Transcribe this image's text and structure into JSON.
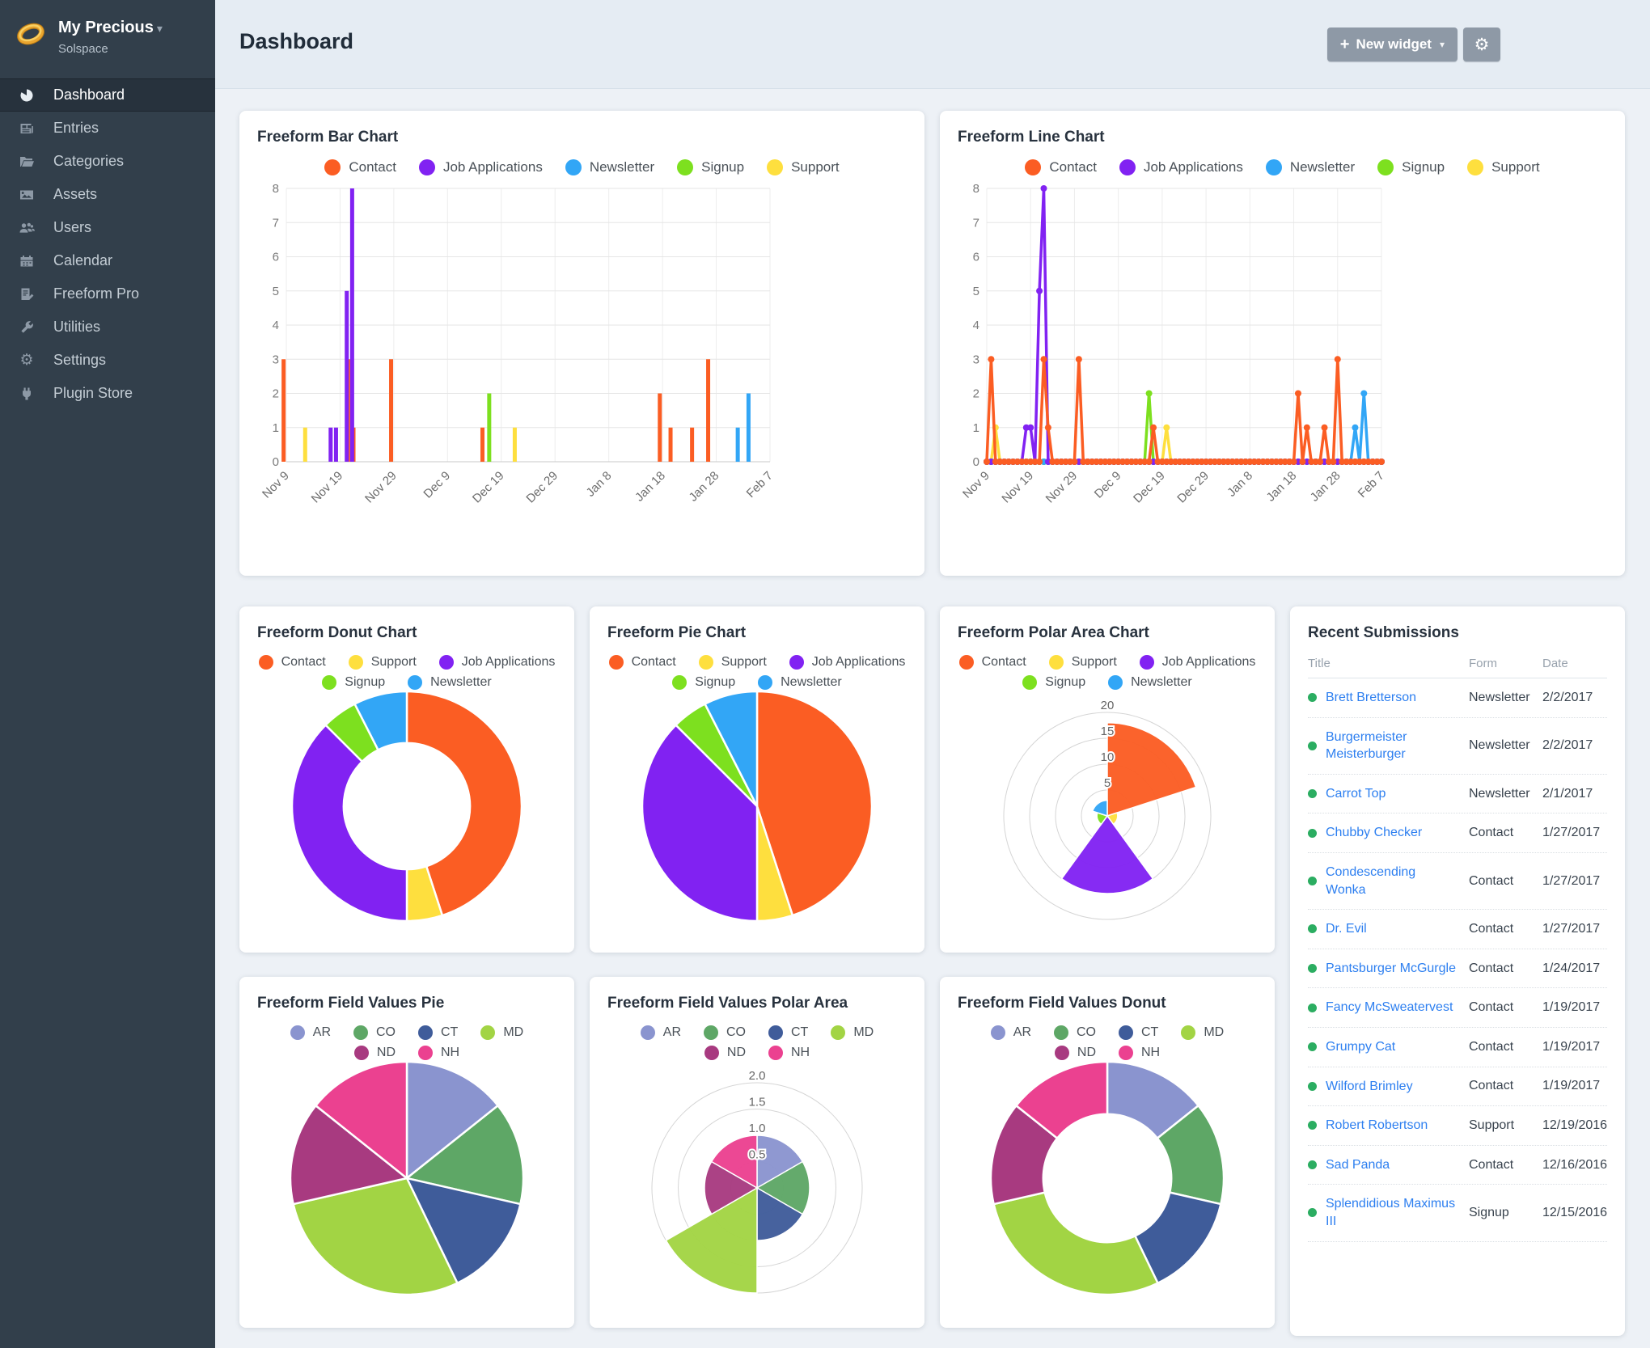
{
  "app": {
    "brand": {
      "name": "My Precious",
      "chevron": "▾",
      "site": "Solspace"
    },
    "header": {
      "title": "Dashboard",
      "new_widget": {
        "plus": "+",
        "label": "New widget",
        "caret": "▾"
      },
      "gear_glyph": "⚙"
    }
  },
  "sidebar": {
    "items": [
      {
        "label": "Dashboard",
        "icon": "gauge-icon",
        "active": true
      },
      {
        "label": "Entries",
        "icon": "newspaper-icon",
        "active": false
      },
      {
        "label": "Categories",
        "icon": "folder-icon",
        "active": false
      },
      {
        "label": "Assets",
        "icon": "image-icon",
        "active": false
      },
      {
        "label": "Users",
        "icon": "users-icon",
        "active": false
      },
      {
        "label": "Calendar",
        "icon": "calendar-icon",
        "active": false
      },
      {
        "label": "Freeform Pro",
        "icon": "document-pencil-icon",
        "active": false
      },
      {
        "label": "Utilities",
        "icon": "wrench-icon",
        "active": false
      },
      {
        "label": "Settings",
        "icon": "gear-icon",
        "active": false
      },
      {
        "label": "Plugin Store",
        "icon": "plug-icon",
        "active": false
      }
    ]
  },
  "colors": {
    "sidebar_bg": "#323f4b",
    "header_bg": "#e5ecf3",
    "page_bg": "#edf1f6",
    "button_bg": "#8e99a6",
    "link_blue": "#2d7ff0",
    "status_green": "#2bad61",
    "series": {
      "Contact": "#fb5d23",
      "Job Applications": "#8122f2",
      "Newsletter": "#32a6f6",
      "Signup": "#7de01f",
      "Support": "#fedf3e"
    },
    "fields": {
      "AR": "#8a94cf",
      "CO": "#5ea766",
      "CT": "#3f5c9a",
      "MD": "#a2d444",
      "ND": "#a83a80",
      "NH": "#eb4190"
    }
  },
  "chart_data": [
    {
      "type": "bar",
      "title": "Freeform Bar Chart",
      "legend": [
        "Contact",
        "Job Applications",
        "Newsletter",
        "Signup",
        "Support"
      ],
      "legend_rows": [
        5
      ],
      "x_axis": {
        "max_day": 90,
        "tick_days": [
          0,
          10,
          20,
          30,
          40,
          50,
          60,
          70,
          80,
          90
        ],
        "tick_labels": [
          "Nov 9",
          "Nov 19",
          "Nov 29",
          "Dec 9",
          "Dec 19",
          "Dec 29",
          "Jan 8",
          "Jan 18",
          "Jan 28",
          "Feb 7"
        ]
      },
      "y_axis": {
        "min": 0,
        "max": 8,
        "step": 1
      },
      "series": [
        {
          "name": "Contact",
          "color": "#fb5d23",
          "points": [
            [
              1,
              3
            ],
            [
              13,
              3
            ],
            [
              14,
              1
            ],
            [
              21,
              3
            ],
            [
              38,
              1
            ],
            [
              71,
              2
            ],
            [
              73,
              1
            ],
            [
              77,
              1
            ],
            [
              80,
              3
            ]
          ]
        },
        {
          "name": "Job Applications",
          "color": "#8122f2",
          "points": [
            [
              9,
              1
            ],
            [
              10,
              1
            ],
            [
              12,
              5
            ],
            [
              13,
              8
            ]
          ]
        },
        {
          "name": "Newsletter",
          "color": "#32a6f6",
          "points": [
            [
              84,
              1
            ],
            [
              86,
              2
            ]
          ]
        },
        {
          "name": "Signup",
          "color": "#7de01f",
          "points": [
            [
              37,
              2
            ]
          ]
        },
        {
          "name": "Support",
          "color": "#fedf3e",
          "points": [
            [
              2,
              1
            ],
            [
              41,
              1
            ]
          ]
        }
      ]
    },
    {
      "type": "line",
      "title": "Freeform Line Chart",
      "legend": [
        "Contact",
        "Job Applications",
        "Newsletter",
        "Signup",
        "Support"
      ],
      "legend_rows": [
        5
      ],
      "x_axis": {
        "max_day": 90,
        "tick_days": [
          0,
          10,
          20,
          30,
          40,
          50,
          60,
          70,
          80,
          90
        ],
        "tick_labels": [
          "Nov 9",
          "Nov 19",
          "Nov 29",
          "Dec 9",
          "Dec 19",
          "Dec 29",
          "Jan 8",
          "Jan 18",
          "Jan 28",
          "Feb 7"
        ]
      },
      "y_axis": {
        "min": 0,
        "max": 8,
        "step": 1
      },
      "series": [
        {
          "name": "Contact",
          "color": "#fb5d23",
          "points": [
            [
              1,
              3
            ],
            [
              13,
              3
            ],
            [
              14,
              1
            ],
            [
              21,
              3
            ],
            [
              38,
              1
            ],
            [
              71,
              2
            ],
            [
              73,
              1
            ],
            [
              77,
              1
            ],
            [
              80,
              3
            ]
          ]
        },
        {
          "name": "Job Applications",
          "color": "#8122f2",
          "points": [
            [
              9,
              1
            ],
            [
              10,
              1
            ],
            [
              12,
              5
            ],
            [
              13,
              8
            ]
          ]
        },
        {
          "name": "Newsletter",
          "color": "#32a6f6",
          "points": [
            [
              84,
              1
            ],
            [
              86,
              2
            ]
          ]
        },
        {
          "name": "Signup",
          "color": "#7de01f",
          "points": [
            [
              37,
              2
            ]
          ]
        },
        {
          "name": "Support",
          "color": "#fedf3e",
          "points": [
            [
              2,
              1
            ],
            [
              41,
              1
            ]
          ]
        }
      ]
    },
    {
      "type": "donut",
      "title": "Freeform Donut Chart",
      "legend": [
        "Contact",
        "Support",
        "Job Applications",
        "Signup",
        "Newsletter"
      ],
      "legend_rows": [
        3,
        2
      ],
      "slices": [
        {
          "label": "Contact",
          "value": 18,
          "color": "#fb5d23"
        },
        {
          "label": "Support",
          "value": 2,
          "color": "#fedf3e"
        },
        {
          "label": "Job Applications",
          "value": 15,
          "color": "#8122f2"
        },
        {
          "label": "Signup",
          "value": 2,
          "color": "#7de01f"
        },
        {
          "label": "Newsletter",
          "value": 3,
          "color": "#32a6f6"
        }
      ]
    },
    {
      "type": "pie",
      "title": "Freeform Pie Chart",
      "legend": [
        "Contact",
        "Support",
        "Job Applications",
        "Signup",
        "Newsletter"
      ],
      "legend_rows": [
        3,
        2
      ],
      "slices": [
        {
          "label": "Contact",
          "value": 18,
          "color": "#fb5d23"
        },
        {
          "label": "Support",
          "value": 2,
          "color": "#fedf3e"
        },
        {
          "label": "Job Applications",
          "value": 15,
          "color": "#8122f2"
        },
        {
          "label": "Signup",
          "value": 2,
          "color": "#7de01f"
        },
        {
          "label": "Newsletter",
          "value": 3,
          "color": "#32a6f6"
        }
      ]
    },
    {
      "type": "polar",
      "title": "Freeform Polar Area Chart",
      "legend": [
        "Contact",
        "Support",
        "Job Applications",
        "Signup",
        "Newsletter"
      ],
      "legend_rows": [
        3,
        2
      ],
      "max": 20,
      "rings": [
        5,
        10,
        15,
        20
      ],
      "ring_labels": [
        "5",
        "10",
        "15",
        "20"
      ],
      "slices": [
        {
          "label": "Contact",
          "value": 18,
          "color": "#fb5d23"
        },
        {
          "label": "Support",
          "value": 2,
          "color": "#fedf3e"
        },
        {
          "label": "Job Applications",
          "value": 15,
          "color": "#8122f2"
        },
        {
          "label": "Signup",
          "value": 2,
          "color": "#7de01f"
        },
        {
          "label": "Newsletter",
          "value": 3,
          "color": "#32a6f6"
        }
      ]
    },
    {
      "type": "pie",
      "title": "Freeform Field Values Pie",
      "legend": [
        "AR",
        "CO",
        "CT",
        "MD",
        "ND",
        "NH"
      ],
      "legend_rows": [
        4,
        2
      ],
      "slices": [
        {
          "label": "AR",
          "value": 1,
          "color": "#8a94cf"
        },
        {
          "label": "CO",
          "value": 1,
          "color": "#5ea766"
        },
        {
          "label": "CT",
          "value": 1,
          "color": "#3f5c9a"
        },
        {
          "label": "MD",
          "value": 2,
          "color": "#a2d444"
        },
        {
          "label": "ND",
          "value": 1,
          "color": "#a83a80"
        },
        {
          "label": "NH",
          "value": 1,
          "color": "#eb4190"
        }
      ]
    },
    {
      "type": "polar",
      "title": "Freeform Field Values Polar Area",
      "legend": [
        "AR",
        "CO",
        "CT",
        "MD",
        "ND",
        "NH"
      ],
      "legend_rows": [
        4,
        2
      ],
      "max": 2,
      "rings": [
        0.5,
        1,
        1.5,
        2
      ],
      "ring_labels": [
        "0.5",
        "1.0",
        "1.5",
        "2.0"
      ],
      "slices": [
        {
          "label": "AR",
          "value": 1,
          "color": "#8a94cf"
        },
        {
          "label": "CO",
          "value": 1,
          "color": "#5ea766"
        },
        {
          "label": "CT",
          "value": 1,
          "color": "#3f5c9a"
        },
        {
          "label": "MD",
          "value": 2,
          "color": "#a2d444"
        },
        {
          "label": "ND",
          "value": 1,
          "color": "#a83a80"
        },
        {
          "label": "NH",
          "value": 1,
          "color": "#eb4190"
        }
      ]
    },
    {
      "type": "donut",
      "title": "Freeform Field Values Donut",
      "legend": [
        "AR",
        "CO",
        "CT",
        "MD",
        "ND",
        "NH"
      ],
      "legend_rows": [
        4,
        2
      ],
      "slices": [
        {
          "label": "AR",
          "value": 1,
          "color": "#8a94cf"
        },
        {
          "label": "CO",
          "value": 1,
          "color": "#5ea766"
        },
        {
          "label": "CT",
          "value": 1,
          "color": "#3f5c9a"
        },
        {
          "label": "MD",
          "value": 2,
          "color": "#a2d444"
        },
        {
          "label": "ND",
          "value": 1,
          "color": "#a83a80"
        },
        {
          "label": "NH",
          "value": 1,
          "color": "#eb4190"
        }
      ]
    }
  ],
  "widgets": {
    "recent": {
      "title": "Recent Submissions",
      "columns": [
        "Title",
        "Form",
        "Date"
      ],
      "rows": [
        {
          "name": "Brett Bretterson",
          "form": "Newsletter",
          "date": "2/2/2017"
        },
        {
          "name": "Burgermeister Meisterburger",
          "form": "Newsletter",
          "date": "2/2/2017"
        },
        {
          "name": "Carrot Top",
          "form": "Newsletter",
          "date": "2/1/2017"
        },
        {
          "name": "Chubby Checker",
          "form": "Contact",
          "date": "1/27/2017"
        },
        {
          "name": "Condescending Wonka",
          "form": "Contact",
          "date": "1/27/2017"
        },
        {
          "name": "Dr. Evil",
          "form": "Contact",
          "date": "1/27/2017"
        },
        {
          "name": "Pantsburger McGurgle",
          "form": "Contact",
          "date": "1/24/2017"
        },
        {
          "name": "Fancy McSweatervest",
          "form": "Contact",
          "date": "1/19/2017"
        },
        {
          "name": "Grumpy Cat",
          "form": "Contact",
          "date": "1/19/2017"
        },
        {
          "name": "Wilford Brimley",
          "form": "Contact",
          "date": "1/19/2017"
        },
        {
          "name": "Robert Robertson",
          "form": "Support",
          "date": "12/19/2016"
        },
        {
          "name": "Sad Panda",
          "form": "Contact",
          "date": "12/16/2016"
        },
        {
          "name": "Splendidious Maximus III",
          "form": "Signup",
          "date": "12/15/2016"
        }
      ]
    }
  }
}
